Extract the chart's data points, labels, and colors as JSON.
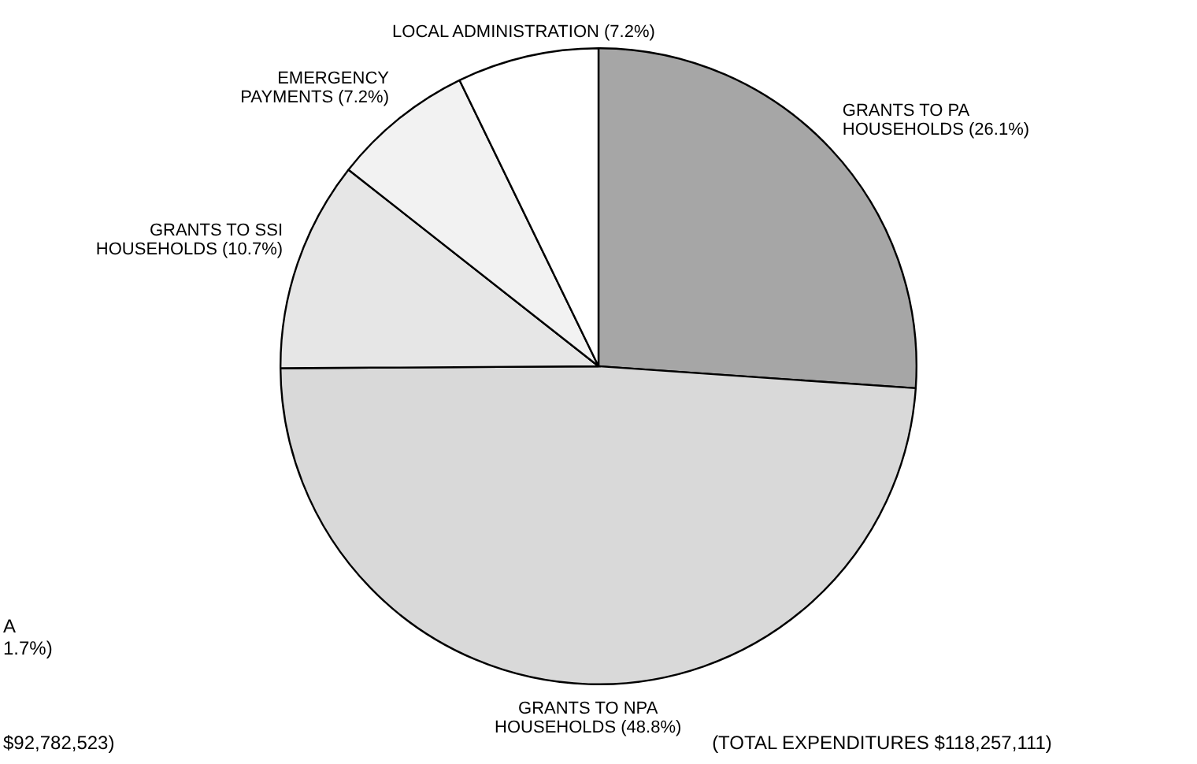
{
  "chart_data": {
    "type": "pie",
    "categories": [
      "GRANTS TO PA\nHOUSEHOLDS",
      "GRANTS TO NPA\nHOUSEHOLDS",
      "GRANTS TO SSI\nHOUSEHOLDS",
      "EMERGENCY\nPAYMENTS",
      "LOCAL ADMINISTRATION"
    ],
    "values": [
      26.1,
      48.8,
      10.7,
      7.2,
      7.2
    ],
    "colors": [
      "#a6a6a6",
      "#d9d9d9",
      "#e6e6e6",
      "#f2f2f2",
      "#ffffff"
    ],
    "value_labels": [
      "(26.1%)",
      "(48.8%)",
      "(10.7%)",
      "(7.2%)",
      "(7.2%)"
    ],
    "annotations": [
      "(TOTAL EXPENDITURES $118,257,111)",
      "A",
      "1.7%)",
      "$92,782,523)"
    ]
  }
}
